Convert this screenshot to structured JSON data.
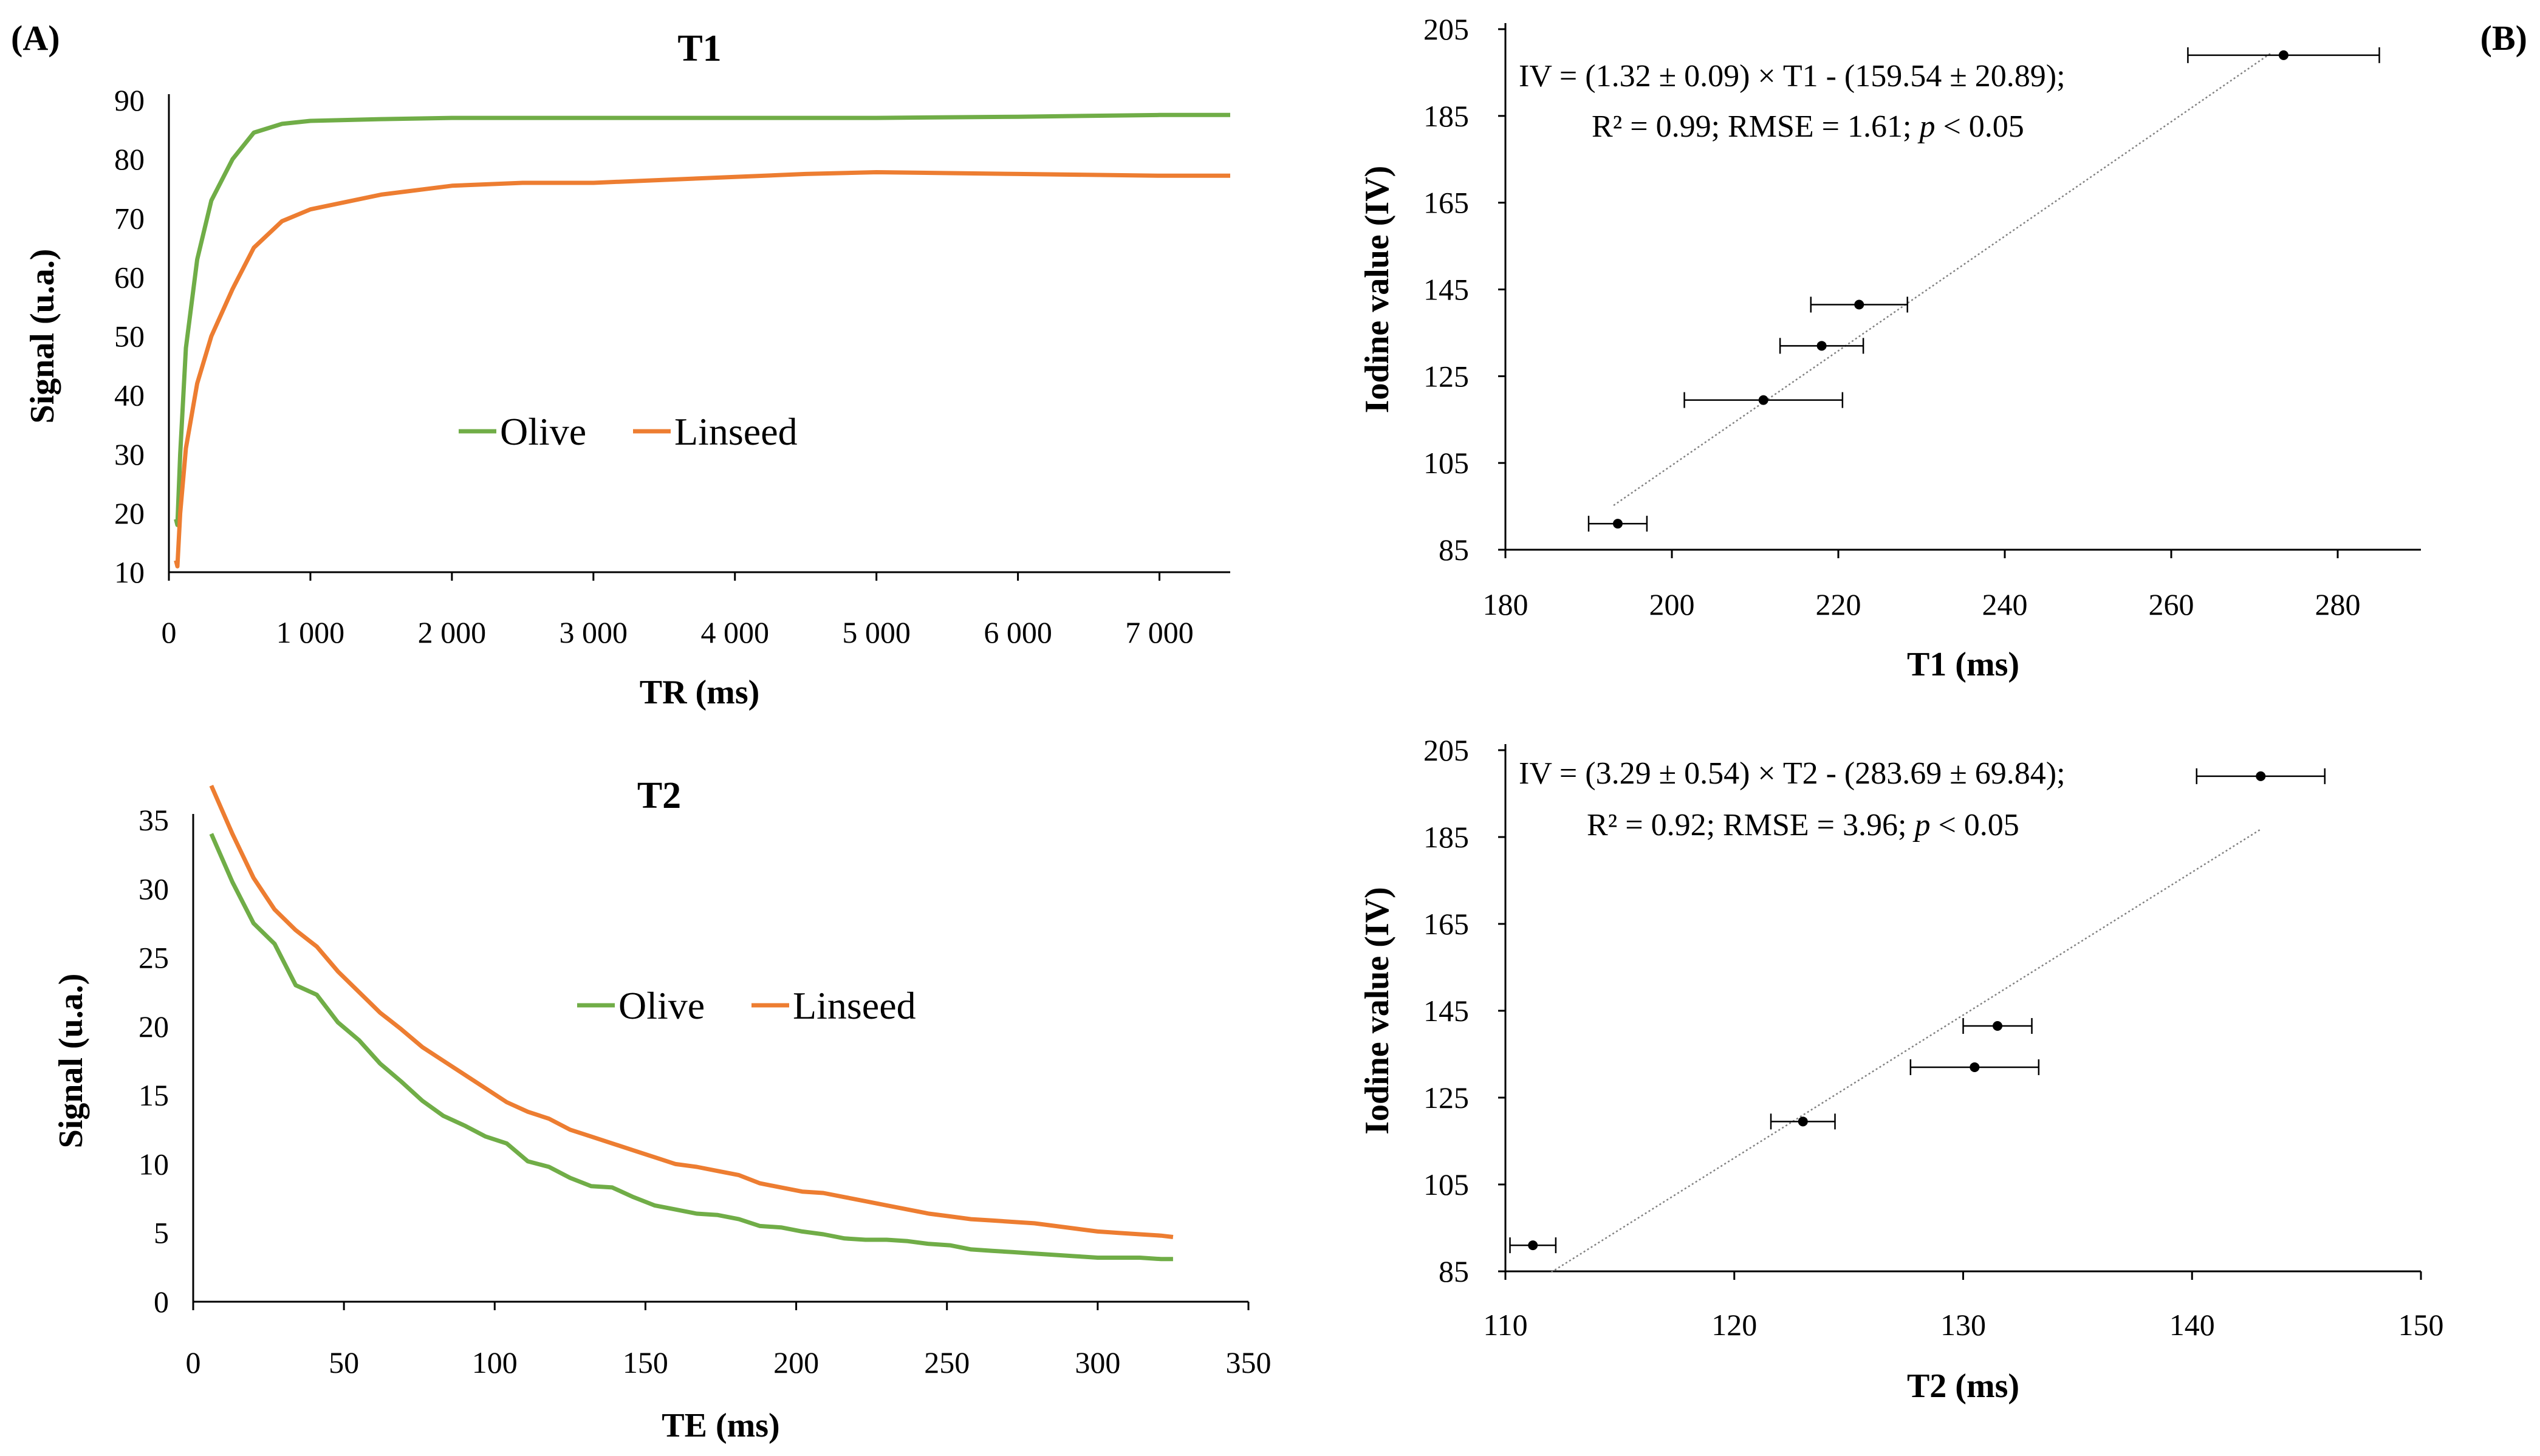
{
  "panel_labels": {
    "a": "(A)",
    "b": "(B)"
  },
  "chart_data": [
    {
      "id": "t1",
      "type": "line",
      "title": "T1",
      "xlabel": "TR (ms)",
      "ylabel": "Signal (u.a.)",
      "xlim": [
        0,
        7500
      ],
      "ylim": [
        10,
        90
      ],
      "xticks": [
        0,
        1000,
        2000,
        3000,
        4000,
        5000,
        6000,
        7000
      ],
      "xtick_labels": [
        "0",
        "1 000",
        "2 000",
        "3 000",
        "4 000",
        "5 000",
        "6 000",
        "7 000"
      ],
      "yticks": [
        10,
        20,
        30,
        40,
        50,
        60,
        70,
        80,
        90
      ],
      "ytick_labels": [
        "10",
        "20",
        "30",
        "40",
        "50",
        "60",
        "70",
        "80",
        "90"
      ],
      "legend": [
        "Olive",
        "Linseed"
      ],
      "series": [
        {
          "name": "Olive",
          "color": "#70ad47",
          "x": [
            50,
            60,
            80,
            120,
            200,
            300,
            450,
            600,
            800,
            1000,
            1500,
            2000,
            3000,
            4000,
            5000,
            6000,
            7000,
            7500
          ],
          "y": [
            19,
            18,
            30,
            48,
            63,
            73,
            80,
            84.5,
            86,
            86.5,
            86.8,
            87,
            87,
            87,
            87,
            87.2,
            87.5,
            87.5
          ]
        },
        {
          "name": "Linseed",
          "color": "#ed7d31",
          "x": [
            50,
            60,
            80,
            120,
            200,
            300,
            450,
            600,
            800,
            1000,
            1500,
            2000,
            2500,
            3000,
            3500,
            4000,
            4500,
            5000,
            6000,
            7000,
            7500
          ],
          "y": [
            12,
            11,
            20,
            31,
            42,
            50,
            58,
            65,
            69.5,
            71.5,
            74,
            75.5,
            76,
            76,
            76.5,
            77,
            77.5,
            77.8,
            77.5,
            77.2,
            77.2
          ]
        }
      ]
    },
    {
      "id": "t2",
      "type": "line",
      "title": "T2",
      "xlabel": "TE (ms)",
      "ylabel": "Signal (u.a.)",
      "xlim": [
        0,
        350
      ],
      "ylim": [
        0,
        35
      ],
      "xticks": [
        0,
        50,
        100,
        150,
        200,
        250,
        300,
        350
      ],
      "xtick_labels": [
        "0",
        "50",
        "100",
        "150",
        "200",
        "250",
        "300",
        "350"
      ],
      "yticks": [
        0,
        5,
        10,
        15,
        20,
        25,
        30,
        35
      ],
      "ytick_labels": [
        "0",
        "5",
        "10",
        "15",
        "20",
        "25",
        "30",
        "35"
      ],
      "legend": [
        "Olive",
        "Linseed"
      ],
      "series": [
        {
          "name": "Olive",
          "color": "#70ad47",
          "x": [
            6,
            13,
            20,
            27,
            34,
            41,
            48,
            55,
            62,
            69,
            76,
            83,
            90,
            97,
            104,
            111,
            118,
            125,
            132,
            139,
            146,
            153,
            160,
            167,
            174,
            181,
            188,
            195,
            202,
            209,
            216,
            223,
            230,
            237,
            244,
            251,
            258,
            265,
            272,
            279,
            286,
            293,
            300,
            307,
            314,
            321,
            325
          ],
          "y": [
            34,
            30.5,
            27.5,
            26,
            23,
            22.3,
            20.3,
            19,
            17.3,
            16,
            14.6,
            13.5,
            12.8,
            12,
            11.5,
            10.2,
            9.8,
            9,
            8.4,
            8.3,
            7.6,
            7,
            6.7,
            6.4,
            6.3,
            6,
            5.5,
            5.4,
            5.1,
            4.9,
            4.6,
            4.5,
            4.5,
            4.4,
            4.2,
            4.1,
            3.8,
            3.7,
            3.6,
            3.5,
            3.4,
            3.3,
            3.2,
            3.2,
            3.2,
            3.1,
            3.1
          ]
        },
        {
          "name": "Linseed",
          "color": "#ed7d31",
          "x": [
            6,
            13,
            20,
            27,
            34,
            41,
            48,
            55,
            62,
            69,
            76,
            83,
            90,
            97,
            104,
            111,
            118,
            125,
            132,
            139,
            146,
            153,
            160,
            167,
            174,
            181,
            188,
            195,
            202,
            209,
            216,
            223,
            230,
            237,
            244,
            251,
            258,
            265,
            272,
            279,
            286,
            293,
            300,
            307,
            314,
            321,
            325
          ],
          "y": [
            37.5,
            34,
            30.8,
            28.5,
            27,
            25.8,
            24,
            22.5,
            21,
            19.8,
            18.5,
            17.5,
            16.5,
            15.5,
            14.5,
            13.8,
            13.3,
            12.5,
            12,
            11.5,
            11,
            10.5,
            10,
            9.8,
            9.5,
            9.2,
            8.6,
            8.3,
            8,
            7.9,
            7.6,
            7.3,
            7,
            6.7,
            6.4,
            6.2,
            6,
            5.9,
            5.8,
            5.7,
            5.5,
            5.3,
            5.1,
            5,
            4.9,
            4.8,
            4.7
          ]
        }
      ]
    },
    {
      "id": "iv_t1",
      "type": "scatter",
      "xlabel": "T1 (ms)",
      "ylabel": "Iodine value (IV)",
      "xlim": [
        180,
        290
      ],
      "ylim": [
        85,
        205
      ],
      "xticks": [
        180,
        200,
        220,
        240,
        260,
        280
      ],
      "xtick_labels": [
        "180",
        "200",
        "220",
        "240",
        "260",
        "280"
      ],
      "yticks": [
        85,
        105,
        125,
        145,
        165,
        185,
        205
      ],
      "ytick_labels": [
        "85",
        "105",
        "125",
        "145",
        "165",
        "185",
        "205"
      ],
      "points": [
        {
          "x": 193.5,
          "y": 91,
          "xerr": 3.5
        },
        {
          "x": 211,
          "y": 119.5,
          "xerr": 9.5
        },
        {
          "x": 218,
          "y": 132,
          "xerr": 5
        },
        {
          "x": 222.5,
          "y": 141.5,
          "xerr": 5.8
        },
        {
          "x": 273.5,
          "y": 199,
          "xerr": 11.5
        }
      ],
      "trendline": {
        "slope": 1.32,
        "intercept": -159.54,
        "x_range": [
          193,
          272
        ]
      },
      "equation": "IV = (1.32 ± 0.09)  × T1 - (159.54 ± 20.89);",
      "stats": {
        "prefix": "R² = 0.99; RMSE = 1.61; ",
        "p": "p",
        "suffix": " < 0.05"
      }
    },
    {
      "id": "iv_t2",
      "type": "scatter",
      "xlabel": "T2 (ms)",
      "ylabel": "Iodine value (IV)",
      "xlim": [
        110,
        150
      ],
      "ylim": [
        85,
        205
      ],
      "xticks": [
        110,
        120,
        130,
        140,
        150
      ],
      "xtick_labels": [
        "110",
        "120",
        "130",
        "140",
        "150"
      ],
      "yticks": [
        85,
        105,
        125,
        145,
        165,
        185,
        205
      ],
      "ytick_labels": [
        "85",
        "105",
        "125",
        "145",
        "165",
        "185",
        "205"
      ],
      "points": [
        {
          "x": 111.2,
          "y": 91,
          "xerr": 1
        },
        {
          "x": 123,
          "y": 119.5,
          "xerr": 1.4
        },
        {
          "x": 130.5,
          "y": 132,
          "xerr": 2.8
        },
        {
          "x": 131.5,
          "y": 141.5,
          "xerr": 1.5
        },
        {
          "x": 143,
          "y": 199,
          "xerr": 2.8
        }
      ],
      "trendline": {
        "slope": 3.29,
        "intercept": -283.69,
        "x_range": [
          112,
          143
        ]
      },
      "equation": "IV = (3.29 ± 0.54)  × T2 - (283.69 ± 69.84);",
      "stats": {
        "prefix": "R² = 0.92; RMSE = 3.96; ",
        "p": "p",
        "suffix": " < 0.05"
      }
    }
  ]
}
